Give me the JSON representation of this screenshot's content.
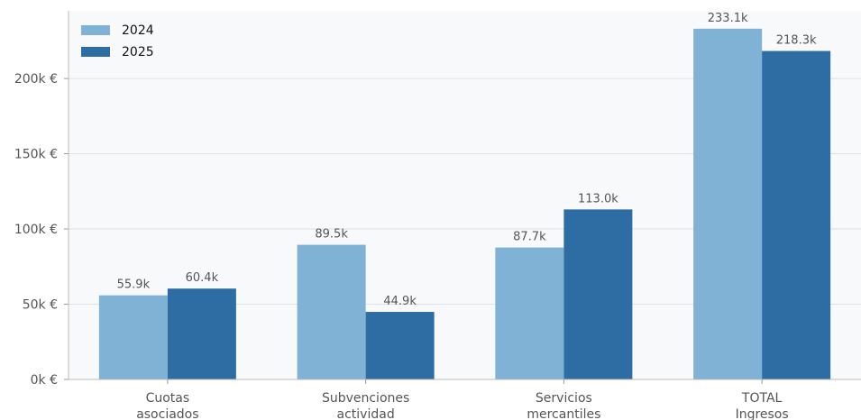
{
  "chart_data": {
    "type": "bar",
    "title": "",
    "xlabel": "",
    "ylabel": "",
    "categories": [
      [
        "Cuotas",
        "asociados"
      ],
      [
        "Subvenciones",
        "actividad"
      ],
      [
        "Servicios",
        "mercantiles"
      ],
      [
        "TOTAL",
        "Ingresos"
      ]
    ],
    "series": [
      {
        "name": "2024",
        "color": "#7fb2d5",
        "values": [
          55.9,
          89.5,
          87.7,
          233.1
        ],
        "labels": [
          "55.9k",
          "89.5k",
          "87.7k",
          "233.1k"
        ]
      },
      {
        "name": "2025",
        "color": "#2e6da4",
        "values": [
          60.4,
          44.9,
          113.0,
          218.3
        ],
        "labels": [
          "60.4k",
          "44.9k",
          "113.0k",
          "218.3k"
        ]
      }
    ],
    "ylim": [
      0,
      245
    ],
    "yticks": [
      {
        "value": 0,
        "label": "0k €"
      },
      {
        "value": 50,
        "label": "50k €"
      },
      {
        "value": 100,
        "label": "100k €"
      },
      {
        "value": 150,
        "label": "150k €"
      },
      {
        "value": 200,
        "label": "200k €"
      }
    ],
    "grid": true,
    "legend_position": "top-left",
    "plot_background": "#f7f9fb"
  }
}
